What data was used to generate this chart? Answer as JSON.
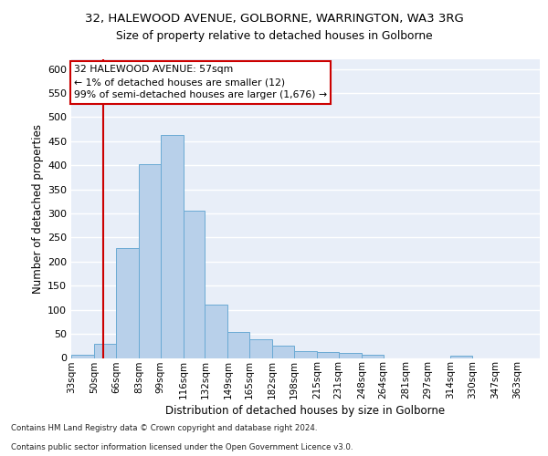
{
  "title_line1": "32, HALEWOOD AVENUE, GOLBORNE, WARRINGTON, WA3 3RG",
  "title_line2": "Size of property relative to detached houses in Golborne",
  "xlabel": "Distribution of detached houses by size in Golborne",
  "ylabel": "Number of detached properties",
  "bin_labels": [
    "33sqm",
    "50sqm",
    "66sqm",
    "83sqm",
    "99sqm",
    "116sqm",
    "132sqm",
    "149sqm",
    "165sqm",
    "182sqm",
    "198sqm",
    "215sqm",
    "231sqm",
    "248sqm",
    "264sqm",
    "281sqm",
    "297sqm",
    "314sqm",
    "330sqm",
    "347sqm",
    "363sqm"
  ],
  "bar_values": [
    7,
    30,
    228,
    403,
    463,
    305,
    110,
    54,
    39,
    26,
    14,
    12,
    10,
    7,
    0,
    0,
    0,
    5,
    0,
    0,
    0
  ],
  "bar_color": "#b8d0ea",
  "bar_edge_color": "#6aaad4",
  "bin_edges": [
    33,
    50,
    66,
    83,
    99,
    116,
    132,
    149,
    165,
    182,
    198,
    215,
    231,
    248,
    264,
    281,
    297,
    314,
    330,
    347,
    363,
    380
  ],
  "annotation_line1": "32 HALEWOOD AVENUE: 57sqm",
  "annotation_line2": "← 1% of detached houses are smaller (12)",
  "annotation_line3": "99% of semi-detached houses are larger (1,676) →",
  "annotation_box_color": "#ffffff",
  "annotation_box_edge": "#cc0000",
  "red_line_x": 57,
  "red_line_color": "#cc0000",
  "ylim": [
    0,
    620
  ],
  "yticks": [
    0,
    50,
    100,
    150,
    200,
    250,
    300,
    350,
    400,
    450,
    500,
    550,
    600
  ],
  "background_color": "#e8eef8",
  "grid_color": "#ffffff",
  "footer_line1": "Contains HM Land Registry data © Crown copyright and database right 2024.",
  "footer_line2": "Contains public sector information licensed under the Open Government Licence v3.0."
}
